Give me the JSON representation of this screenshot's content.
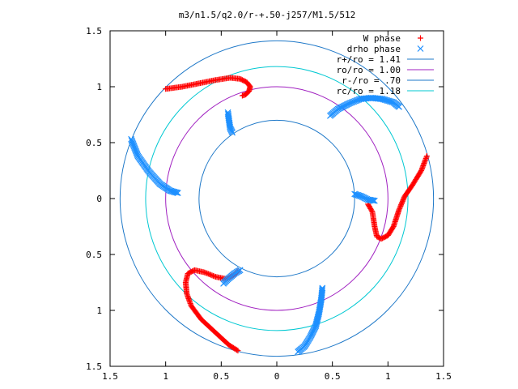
{
  "chart_data": {
    "type": "scatter",
    "title": "m3/n1.5/q2.0/r-+.50-j257/M1.5/512",
    "xlabel": "",
    "ylabel": "",
    "xlim": [
      -1.5,
      1.5
    ],
    "ylim": [
      -1.5,
      1.5
    ],
    "grid": false,
    "legend_position": "top-right",
    "x_tick_labels": [
      "1.5",
      "1",
      "0.5",
      "0",
      "0.5",
      "1",
      "1.5"
    ],
    "y_tick_labels": [
      "1.5",
      "1",
      "0.5",
      "0",
      "0.5",
      "1",
      "1.5"
    ],
    "x_ticks": [
      -1.5,
      -1,
      -0.5,
      0,
      0.5,
      1,
      1.5
    ],
    "y_ticks": [
      1.5,
      1,
      0.5,
      0,
      -0.5,
      -1,
      -1.5
    ],
    "circles": [
      {
        "name": "r+/ro = 1.41",
        "radius": 1.41,
        "color": "#1e78c8"
      },
      {
        "name": "ro/ro = 1.00",
        "radius": 1.0,
        "color": "#a020c0"
      },
      {
        "name": "r-/ro = .70",
        "radius": 0.7,
        "color": "#1e78c8"
      },
      {
        "name": "rc/ro = 1.18",
        "radius": 1.18,
        "color": "#00c8d2"
      }
    ],
    "series": [
      {
        "name": "W phase",
        "marker": "+",
        "color": "#ff0000",
        "curves": [
          [
            [
              -1.0,
              0.98
            ],
            [
              -0.85,
              1.0
            ],
            [
              -0.7,
              1.03
            ],
            [
              -0.55,
              1.06
            ],
            [
              -0.42,
              1.08
            ],
            [
              -0.33,
              1.07
            ],
            [
              -0.27,
              1.04
            ],
            [
              -0.24,
              1.0
            ],
            [
              -0.25,
              0.96
            ],
            [
              -0.28,
              0.93
            ],
            [
              -0.31,
              0.92
            ]
          ],
          [
            [
              1.35,
              0.38
            ],
            [
              1.3,
              0.25
            ],
            [
              1.22,
              0.12
            ],
            [
              1.15,
              0.02
            ],
            [
              1.1,
              -0.1
            ],
            [
              1.05,
              -0.25
            ],
            [
              1.0,
              -0.33
            ],
            [
              0.94,
              -0.36
            ],
            [
              0.9,
              -0.34
            ],
            [
              0.88,
              -0.25
            ],
            [
              0.86,
              -0.12
            ],
            [
              0.82,
              -0.05
            ]
          ],
          [
            [
              -0.35,
              -1.36
            ],
            [
              -0.43,
              -1.31
            ],
            [
              -0.55,
              -1.2
            ],
            [
              -0.68,
              -1.08
            ],
            [
              -0.77,
              -0.96
            ],
            [
              -0.81,
              -0.85
            ],
            [
              -0.82,
              -0.75
            ],
            [
              -0.8,
              -0.67
            ],
            [
              -0.74,
              -0.64
            ],
            [
              -0.65,
              -0.66
            ],
            [
              -0.55,
              -0.7
            ],
            [
              -0.45,
              -0.72
            ],
            [
              -0.38,
              -0.68
            ],
            [
              -0.35,
              -0.65
            ]
          ]
        ]
      },
      {
        "name": "drho phase",
        "marker": "x",
        "color": "#1e90ff",
        "curves": [
          [
            [
              -1.31,
              0.53
            ],
            [
              -1.25,
              0.38
            ],
            [
              -1.15,
              0.24
            ],
            [
              -1.05,
              0.13
            ],
            [
              -0.96,
              0.07
            ],
            [
              -0.89,
              0.05
            ]
          ],
          [
            [
              -0.44,
              0.77
            ],
            [
              -0.43,
              0.7
            ],
            [
              -0.42,
              0.63
            ],
            [
              -0.4,
              0.59
            ]
          ],
          [
            [
              0.48,
              0.74
            ],
            [
              0.55,
              0.8
            ],
            [
              0.65,
              0.85
            ],
            [
              0.75,
              0.89
            ],
            [
              0.85,
              0.9
            ],
            [
              0.95,
              0.89
            ],
            [
              1.05,
              0.86
            ],
            [
              1.1,
              0.82
            ]
          ],
          [
            [
              0.7,
              0.04
            ],
            [
              0.76,
              0.02
            ],
            [
              0.82,
              -0.01
            ],
            [
              0.88,
              -0.02
            ]
          ],
          [
            [
              0.41,
              -0.8
            ],
            [
              0.4,
              -0.9
            ],
            [
              0.38,
              -1.02
            ],
            [
              0.35,
              -1.14
            ],
            [
              0.3,
              -1.24
            ],
            [
              0.25,
              -1.32
            ],
            [
              0.19,
              -1.37
            ]
          ],
          [
            [
              -0.33,
              -0.64
            ],
            [
              -0.38,
              -0.67
            ],
            [
              -0.44,
              -0.72
            ],
            [
              -0.48,
              -0.76
            ]
          ]
        ]
      }
    ]
  }
}
